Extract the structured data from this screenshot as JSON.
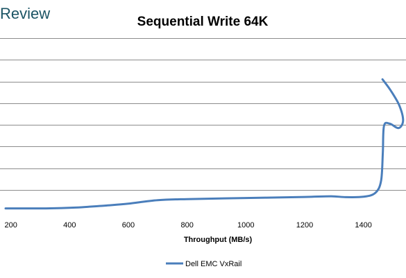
{
  "watermark": "Review",
  "chart_data": {
    "type": "line",
    "title": "Sequential Write 64K",
    "xlabel": "Throughput  (MB/s)",
    "ylabel": "",
    "x_ticks": [
      200,
      400,
      600,
      800,
      1000,
      1200,
      1400
    ],
    "xlim": [
      163,
      1545
    ],
    "grid": true,
    "y_grid_count": 8,
    "legend": "bottom",
    "series": [
      {
        "name": "Dell EMC VxRail",
        "color": "#4a7ebb",
        "points": [
          [
            182,
            0.14
          ],
          [
            320,
            0.14
          ],
          [
            420,
            0.18
          ],
          [
            520,
            0.27
          ],
          [
            600,
            0.36
          ],
          [
            700,
            0.52
          ],
          [
            800,
            0.57
          ],
          [
            1000,
            0.62
          ],
          [
            1200,
            0.67
          ],
          [
            1290,
            0.7
          ],
          [
            1340,
            0.66
          ],
          [
            1400,
            0.68
          ],
          [
            1440,
            0.85
          ],
          [
            1460,
            1.4
          ],
          [
            1466,
            2.7
          ],
          [
            1470,
            3.95
          ],
          [
            1490,
            4.05
          ],
          [
            1520,
            3.85
          ],
          [
            1535,
            4.2
          ],
          [
            1522,
            4.9
          ],
          [
            1492,
            5.6
          ],
          [
            1465,
            6.1
          ]
        ]
      }
    ]
  }
}
